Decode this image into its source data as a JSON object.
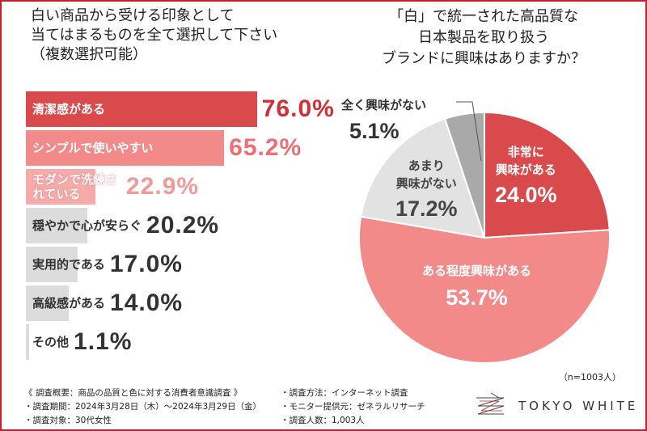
{
  "left_title": [
    "白い商品から受ける印象として",
    "当てはまるものを全て選択して下さい",
    "（複数選択可能）"
  ],
  "right_title": [
    "「白」で統一された高品質な",
    "日本製品を取り扱う",
    "ブランドに興味はありますか？"
  ],
  "chart_data": [
    {
      "type": "bar",
      "orientation": "horizontal",
      "title": "白い商品から受ける印象として当てはまるものを全て選択して下さい（複数選択可能）",
      "categories": [
        "清潔感がある",
        "シンプルで使いやすい",
        "モダンで洗練されている",
        "穏やかで心が安らぐ",
        "実用的である",
        "高級感がある",
        "その他"
      ],
      "values": [
        76.0,
        65.2,
        22.9,
        20.2,
        17.0,
        14.0,
        1.1
      ],
      "labels": [
        "76.0%",
        "65.2%",
        "22.9%",
        "20.2%",
        "17.0%",
        "14.0%",
        "1.1%"
      ],
      "colors": [
        "#d94a4c",
        "#f28a8a",
        "#f6aaaa",
        "#dcdcdc",
        "#dcdcdc",
        "#dcdcdc",
        "#dcdcdc"
      ],
      "value_colors": [
        "#d22f35",
        "#ee6f73",
        "#f19a9c",
        "#333333",
        "#333333",
        "#333333",
        "#333333"
      ],
      "label_colors": [
        "#ffffff",
        "#ffffff",
        "#ffffff",
        "#333333",
        "#333333",
        "#333333",
        "#333333"
      ],
      "xlim": [
        0,
        100
      ]
    },
    {
      "type": "pie",
      "title": "「白」で統一された高品質な日本製品を取り扱うブランドに興味はありますか？",
      "slices": [
        {
          "label": "非常に興味がある",
          "value": 24.0,
          "text": "24.0%",
          "color": "#d94a4c"
        },
        {
          "label": "ある程度興味がある",
          "value": 53.7,
          "text": "53.7%",
          "color": "#f28a8a"
        },
        {
          "label": "あまり興味がない",
          "value": 17.2,
          "text": "17.2%",
          "color": "#e2e2e2"
        },
        {
          "label": "全く興味がない",
          "value": 5.1,
          "text": "5.1%",
          "color": "#a9a9a9"
        }
      ],
      "start": "top",
      "direction": "clockwise"
    }
  ],
  "pie_labels": {
    "s0": [
      "非常に",
      "興味がある"
    ],
    "s1": "ある程度興味がある",
    "s2": [
      "あまり",
      "興味がない"
    ],
    "s3": "全く興味がない"
  },
  "sample_note": "（n=1003人）",
  "footer": {
    "col1": [
      "《 調査概要：商品の品質と色に対する消費者意識調査 》",
      "・調査期間：2024年3月28日（木）～2024年3月29日（金）",
      "・調査対象：30代女性"
    ],
    "col2": [
      "・調査方法：インターネット調査",
      "・モニター提供元：ゼネラルリサーチ",
      "・調査人数：1,003人"
    ]
  },
  "brand": "TOKYO WHITE"
}
